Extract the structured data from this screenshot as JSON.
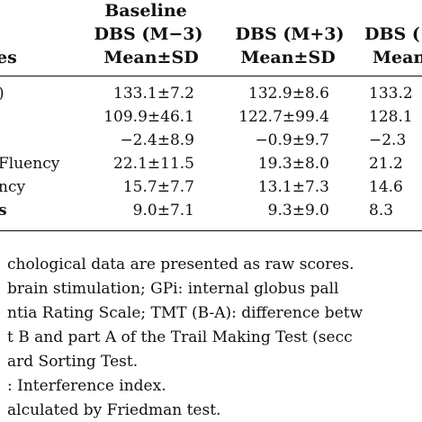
{
  "table": {
    "headers": {
      "col_label": "es",
      "baseline": "Baseline",
      "dbs_m3": "DBS (M−3)",
      "dbs_p3": "DBS (M+3)",
      "dbs_next": "DBS (",
      "mean_sd": "Mean±SD",
      "mean_next": "Mean"
    },
    "rows": [
      {
        "label": ")",
        "baseline": "133.1±7.2",
        "m3": "132.9±8.6",
        "next": "133.2"
      },
      {
        "label": "",
        "baseline": "109.9±46.1",
        "m3": "122.7±99.4",
        "next": "128.1"
      },
      {
        "label": "",
        "baseline": "−2.4±8.9",
        "m3": "−0.9±9.7",
        "next": "−2.3"
      },
      {
        "label": "Fluency",
        "baseline": "22.1±11.5",
        "m3": "19.3±8.0",
        "next": "21.2"
      },
      {
        "label": "ncy",
        "baseline": "15.7±7.7",
        "m3": "13.1±7.3",
        "next": "14.6"
      },
      {
        "label": "s",
        "baseline": "9.0±7.1",
        "m3": "9.3±9.0",
        "next": "8.3"
      }
    ]
  },
  "footnotes": [
    "chological data are presented as raw scores.",
    "brain stimulation; GPi: internal globus pall",
    "ntia Rating Scale; TMT (B-A): difference betw",
    "t B and part A of the Trail Making Test (secc",
    "ard Sorting Test.",
    ": Interference index.",
    "alculated by Friedman test."
  ]
}
